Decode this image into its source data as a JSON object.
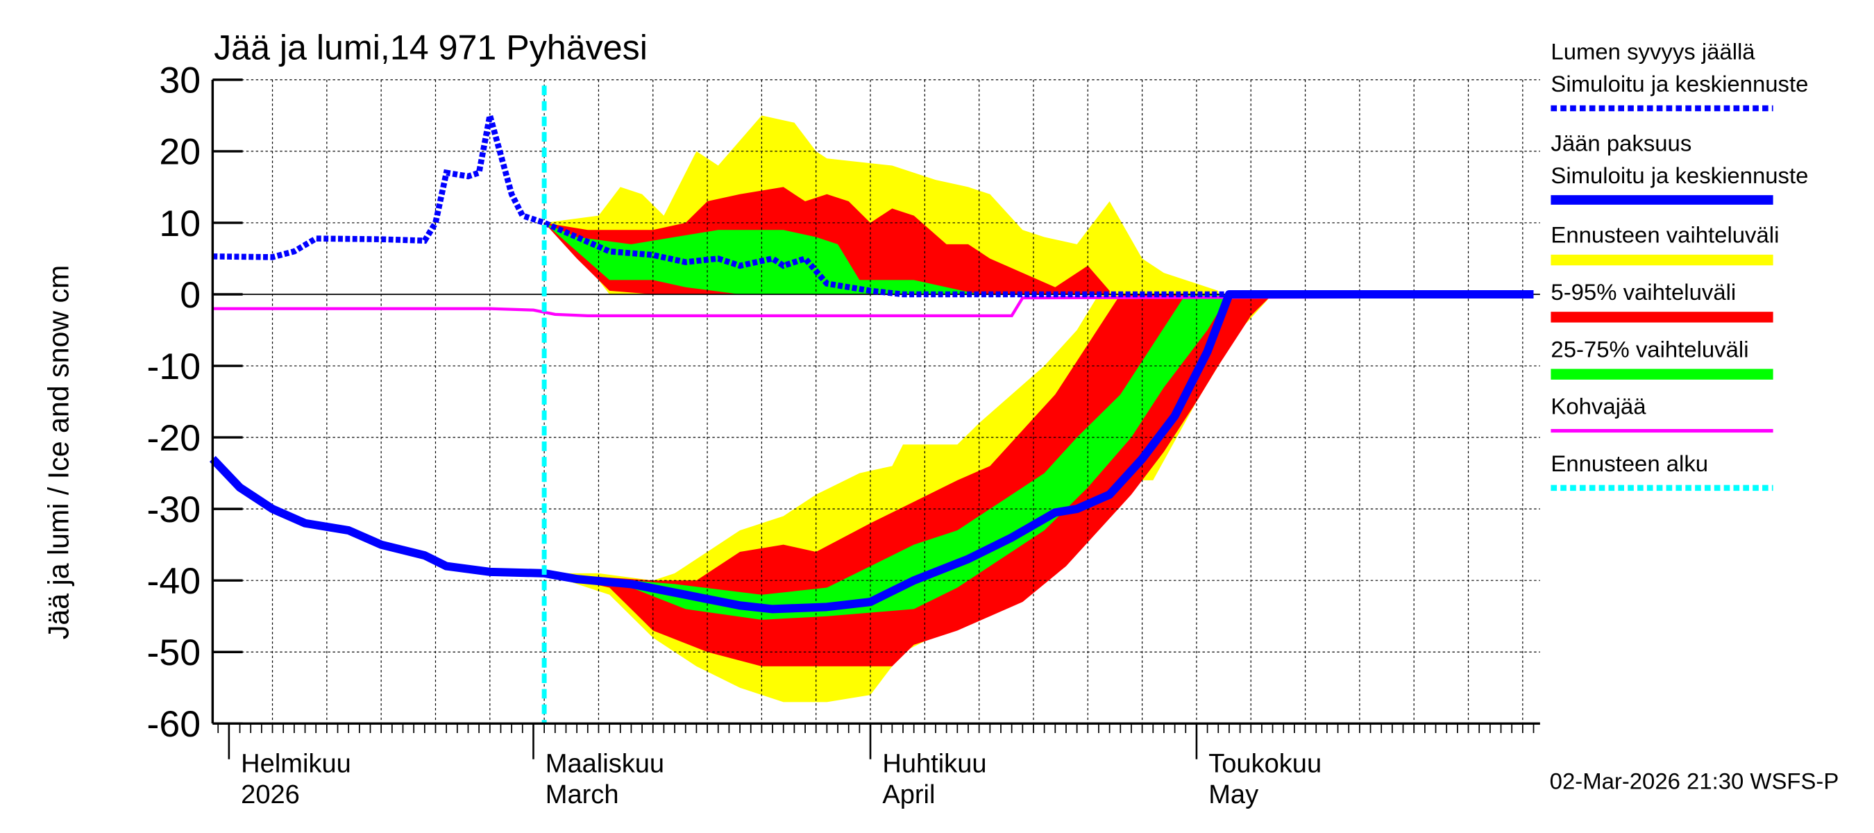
{
  "chart_data": {
    "type": "area",
    "title": "Jää ja lumi,14 971 Pyhävesi",
    "ylabel": "Jää ja lumi / Ice and snow    cm",
    "ylim": [
      -60,
      30
    ],
    "yticks": [
      30,
      20,
      10,
      0,
      -10,
      -20,
      -30,
      -40,
      -50,
      -60
    ],
    "xlim": [
      "2026-01-30",
      "2026-06-01"
    ],
    "grid": true,
    "legend_placement": "right",
    "month_labels": [
      {
        "date": "2026-02-01",
        "fi": "Helmikuu",
        "en": "2026"
      },
      {
        "date": "2026-03-01",
        "fi": "Maaliskuu",
        "en": "March"
      },
      {
        "date": "2026-04-01",
        "fi": "Huhtikuu",
        "en": "April"
      },
      {
        "date": "2026-05-01",
        "fi": "Toukokuu",
        "en": "May"
      }
    ],
    "forecast_start": "2026-03-02",
    "colors": {
      "snow": "#0000ff",
      "ice": "#0000ff",
      "minmax": "#ffff00",
      "p5_95": "#ff0000",
      "p25_75": "#00ff00",
      "slush": "#ff00ff",
      "forecast_start": "#00ffff"
    },
    "legend": [
      {
        "label1": "Lumen syvyys jäällä",
        "label2": "Simuloitu ja keskiennuste",
        "style": "dotted",
        "color": "#0000ff"
      },
      {
        "label1": "Jään paksuus",
        "label2": "Simuloitu ja keskiennuste",
        "style": "solid",
        "color": "#0000ff"
      },
      {
        "label1": "Ennusteen vaihteluväli",
        "style": "band",
        "color": "#ffff00"
      },
      {
        "label1": "5-95% vaihteluväli",
        "style": "band",
        "color": "#ff0000"
      },
      {
        "label1": "25-75% vaihteluväli",
        "style": "band",
        "color": "#00ff00"
      },
      {
        "label1": "Kohvajää",
        "style": "thin",
        "color": "#ff00ff"
      },
      {
        "label1": "Ennusteen alku",
        "style": "dotted",
        "color": "#00ffff"
      }
    ],
    "snow_bands": {
      "minmax_upper": [
        [
          "2026-03-02",
          10
        ],
        [
          "2026-03-07",
          11
        ],
        [
          "2026-03-09",
          15
        ],
        [
          "2026-03-11",
          14
        ],
        [
          "2026-03-13",
          11
        ],
        [
          "2026-03-16",
          20
        ],
        [
          "2026-03-18",
          18
        ],
        [
          "2026-03-22",
          25
        ],
        [
          "2026-03-25",
          24
        ],
        [
          "2026-03-27",
          20
        ],
        [
          "2026-03-28",
          19
        ],
        [
          "2026-04-03",
          18
        ],
        [
          "2026-04-07",
          16
        ],
        [
          "2026-04-10",
          15
        ],
        [
          "2026-04-12",
          14
        ],
        [
          "2026-04-15",
          9
        ],
        [
          "2026-04-17",
          8
        ],
        [
          "2026-04-20",
          7
        ],
        [
          "2026-04-23",
          13
        ],
        [
          "2026-04-26",
          5
        ],
        [
          "2026-04-28",
          3
        ],
        [
          "2026-05-03",
          0.5
        ]
      ],
      "minmax_lower": [
        [
          "2026-03-02",
          10
        ],
        [
          "2026-03-06",
          4
        ],
        [
          "2026-03-08",
          0
        ],
        [
          "2026-05-03",
          0
        ]
      ],
      "p5_95_upper": [
        [
          "2026-03-02",
          10
        ],
        [
          "2026-03-06",
          9
        ],
        [
          "2026-03-12",
          9
        ],
        [
          "2026-03-15",
          10
        ],
        [
          "2026-03-17",
          13
        ],
        [
          "2026-03-20",
          14
        ],
        [
          "2026-03-24",
          15
        ],
        [
          "2026-03-26",
          13
        ],
        [
          "2026-03-28",
          14
        ],
        [
          "2026-03-30",
          13
        ],
        [
          "2026-04-01",
          10
        ],
        [
          "2026-04-03",
          12
        ],
        [
          "2026-04-05",
          11
        ],
        [
          "2026-04-08",
          7
        ],
        [
          "2026-04-10",
          7
        ],
        [
          "2026-04-12",
          5
        ],
        [
          "2026-04-15",
          3
        ],
        [
          "2026-04-18",
          1
        ],
        [
          "2026-04-21",
          4
        ],
        [
          "2026-04-23",
          0.5
        ]
      ],
      "p5_95_lower": [
        [
          "2026-03-02",
          10
        ],
        [
          "2026-03-05",
          5
        ],
        [
          "2026-03-08",
          0.5
        ],
        [
          "2026-03-12",
          0
        ],
        [
          "2026-04-23",
          0
        ]
      ],
      "p25_75_upper": [
        [
          "2026-03-02",
          10
        ],
        [
          "2026-03-05",
          8
        ],
        [
          "2026-03-10",
          7
        ],
        [
          "2026-03-14",
          8
        ],
        [
          "2026-03-18",
          9
        ],
        [
          "2026-03-24",
          9
        ],
        [
          "2026-03-27",
          8
        ],
        [
          "2026-03-29",
          7
        ],
        [
          "2026-03-31",
          2
        ],
        [
          "2026-04-05",
          2
        ],
        [
          "2026-04-08",
          1
        ],
        [
          "2026-04-11",
          0
        ]
      ],
      "p25_75_lower": [
        [
          "2026-03-02",
          10
        ],
        [
          "2026-03-05",
          6
        ],
        [
          "2026-03-08",
          2
        ],
        [
          "2026-03-12",
          2
        ],
        [
          "2026-03-15",
          1
        ],
        [
          "2026-03-20",
          0
        ],
        [
          "2026-04-11",
          0
        ]
      ]
    },
    "ice_bands": {
      "minmax_upper": [
        [
          "2026-03-02",
          -39
        ],
        [
          "2026-03-07",
          -39
        ],
        [
          "2026-03-12",
          -40
        ],
        [
          "2026-03-14",
          -39
        ],
        [
          "2026-03-17",
          -36
        ],
        [
          "2026-03-20",
          -33
        ],
        [
          "2026-03-24",
          -31
        ],
        [
          "2026-03-27",
          -28
        ],
        [
          "2026-03-31",
          -25
        ],
        [
          "2026-04-03",
          -24
        ],
        [
          "2026-04-04",
          -21
        ],
        [
          "2026-04-09",
          -21
        ],
        [
          "2026-04-11",
          -18
        ],
        [
          "2026-04-14",
          -14
        ],
        [
          "2026-04-17",
          -10
        ],
        [
          "2026-04-20",
          -5
        ],
        [
          "2026-04-22",
          0
        ]
      ],
      "minmax_lower": [
        [
          "2026-03-02",
          -39
        ],
        [
          "2026-03-08",
          -42
        ],
        [
          "2026-03-12",
          -48
        ],
        [
          "2026-03-16",
          -52
        ],
        [
          "2026-03-20",
          -55
        ],
        [
          "2026-03-24",
          -57
        ],
        [
          "2026-03-28",
          -57
        ],
        [
          "2026-04-01",
          -56
        ],
        [
          "2026-04-04",
          -50
        ],
        [
          "2026-04-08",
          -47
        ],
        [
          "2026-04-12",
          -43
        ],
        [
          "2026-04-16",
          -40
        ],
        [
          "2026-04-18",
          -36
        ],
        [
          "2026-04-21",
          -30
        ],
        [
          "2026-04-24",
          -26
        ],
        [
          "2026-04-27",
          -26
        ],
        [
          "2026-05-01",
          -15
        ],
        [
          "2026-05-05",
          -5
        ],
        [
          "2026-05-08",
          0
        ]
      ],
      "p5_95_upper": [
        [
          "2026-03-02",
          -39
        ],
        [
          "2026-03-12",
          -40
        ],
        [
          "2026-03-16",
          -40
        ],
        [
          "2026-03-20",
          -36
        ],
        [
          "2026-03-24",
          -35
        ],
        [
          "2026-03-27",
          -36
        ],
        [
          "2026-04-01",
          -32
        ],
        [
          "2026-04-05",
          -29
        ],
        [
          "2026-04-09",
          -26
        ],
        [
          "2026-04-12",
          -24
        ],
        [
          "2026-04-15",
          -19
        ],
        [
          "2026-04-18",
          -14
        ],
        [
          "2026-04-21",
          -7
        ],
        [
          "2026-04-24",
          0
        ]
      ],
      "p5_95_lower": [
        [
          "2026-03-02",
          -39
        ],
        [
          "2026-03-08",
          -41
        ],
        [
          "2026-03-12",
          -47
        ],
        [
          "2026-03-17",
          -50
        ],
        [
          "2026-03-22",
          -52
        ],
        [
          "2026-04-03",
          -52
        ],
        [
          "2026-04-05",
          -49
        ],
        [
          "2026-04-09",
          -47
        ],
        [
          "2026-04-12",
          -45
        ],
        [
          "2026-04-15",
          -43
        ],
        [
          "2026-04-19",
          -38
        ],
        [
          "2026-04-22",
          -33
        ],
        [
          "2026-04-25",
          -28
        ],
        [
          "2026-04-28",
          -22
        ],
        [
          "2026-05-01",
          -15
        ],
        [
          "2026-05-03",
          -10
        ],
        [
          "2026-05-06",
          -3
        ],
        [
          "2026-05-08",
          0
        ]
      ],
      "p25_75_upper": [
        [
          "2026-03-02",
          -39
        ],
        [
          "2026-03-14",
          -40.5
        ],
        [
          "2026-03-22",
          -42
        ],
        [
          "2026-03-28",
          -41
        ],
        [
          "2026-04-01",
          -38
        ],
        [
          "2026-04-05",
          -35
        ],
        [
          "2026-04-09",
          -33
        ],
        [
          "2026-04-13",
          -29
        ],
        [
          "2026-04-17",
          -25
        ],
        [
          "2026-04-20",
          -20
        ],
        [
          "2026-04-24",
          -14
        ],
        [
          "2026-04-27",
          -7
        ],
        [
          "2026-04-30",
          0
        ]
      ],
      "p25_75_lower": [
        [
          "2026-03-02",
          -39
        ],
        [
          "2026-03-10",
          -41
        ],
        [
          "2026-03-15",
          -44
        ],
        [
          "2026-03-22",
          -45.5
        ],
        [
          "2026-03-28",
          -45
        ],
        [
          "2026-04-05",
          -44
        ],
        [
          "2026-04-09",
          -41
        ],
        [
          "2026-04-13",
          -37
        ],
        [
          "2026-04-17",
          -33
        ],
        [
          "2026-04-21",
          -27
        ],
        [
          "2026-04-25",
          -20
        ],
        [
          "2026-04-28",
          -13
        ],
        [
          "2026-05-02",
          -5
        ],
        [
          "2026-05-04",
          0
        ]
      ]
    },
    "snow_depth": [
      [
        "2026-01-30",
        5.3
      ],
      [
        "2026-02-05",
        5.2
      ],
      [
        "2026-02-07",
        6
      ],
      [
        "2026-02-09",
        7.8
      ],
      [
        "2026-02-15",
        7.7
      ],
      [
        "2026-02-19",
        7.5
      ],
      [
        "2026-02-20",
        10
      ],
      [
        "2026-02-21",
        17
      ],
      [
        "2026-02-23",
        16.5
      ],
      [
        "2026-02-24",
        17
      ],
      [
        "2026-02-25",
        25
      ],
      [
        "2026-02-27",
        14
      ],
      [
        "2026-02-28",
        11
      ],
      [
        "2026-03-02",
        10
      ],
      [
        "2026-03-05",
        8
      ],
      [
        "2026-03-08",
        6
      ],
      [
        "2026-03-12",
        5.5
      ],
      [
        "2026-03-15",
        4.5
      ],
      [
        "2026-03-18",
        5
      ],
      [
        "2026-03-20",
        4
      ],
      [
        "2026-03-23",
        5
      ],
      [
        "2026-03-24",
        4
      ],
      [
        "2026-03-26",
        5
      ],
      [
        "2026-03-28",
        1.5
      ],
      [
        "2026-04-01",
        0.5
      ],
      [
        "2026-04-04",
        0
      ],
      [
        "2026-06-01",
        0
      ]
    ],
    "ice_thickness": [
      [
        "2026-01-30",
        -23
      ],
      [
        "2026-02-02",
        -27
      ],
      [
        "2026-02-05",
        -30
      ],
      [
        "2026-02-08",
        -32
      ],
      [
        "2026-02-12",
        -33
      ],
      [
        "2026-02-15",
        -35
      ],
      [
        "2026-02-19",
        -36.5
      ],
      [
        "2026-02-21",
        -38
      ],
      [
        "2026-02-25",
        -38.8
      ],
      [
        "2026-03-02",
        -39
      ],
      [
        "2026-03-05",
        -39.8
      ],
      [
        "2026-03-10",
        -40.5
      ],
      [
        "2026-03-15",
        -42
      ],
      [
        "2026-03-20",
        -43.5
      ],
      [
        "2026-03-23",
        -44
      ],
      [
        "2026-03-28",
        -43.7
      ],
      [
        "2026-04-01",
        -43
      ],
      [
        "2026-04-05",
        -40
      ],
      [
        "2026-04-10",
        -37
      ],
      [
        "2026-04-14",
        -34
      ],
      [
        "2026-04-18",
        -30.5
      ],
      [
        "2026-04-20",
        -30
      ],
      [
        "2026-04-23",
        -28
      ],
      [
        "2026-04-26",
        -23
      ],
      [
        "2026-04-29",
        -17
      ],
      [
        "2026-05-02",
        -8
      ],
      [
        "2026-05-04",
        0
      ],
      [
        "2026-06-01",
        0
      ]
    ],
    "slush_ice": [
      [
        "2026-01-30",
        -2
      ],
      [
        "2026-02-25",
        -2
      ],
      [
        "2026-03-01",
        -2.2
      ],
      [
        "2026-03-03",
        -2.8
      ],
      [
        "2026-03-06",
        -3
      ],
      [
        "2026-04-14",
        -3
      ],
      [
        "2026-04-15",
        -0.5
      ],
      [
        "2026-06-01",
        -0.3
      ]
    ]
  },
  "footer": {
    "timestamp": "02-Mar-2026 21:30 WSFS-P"
  }
}
